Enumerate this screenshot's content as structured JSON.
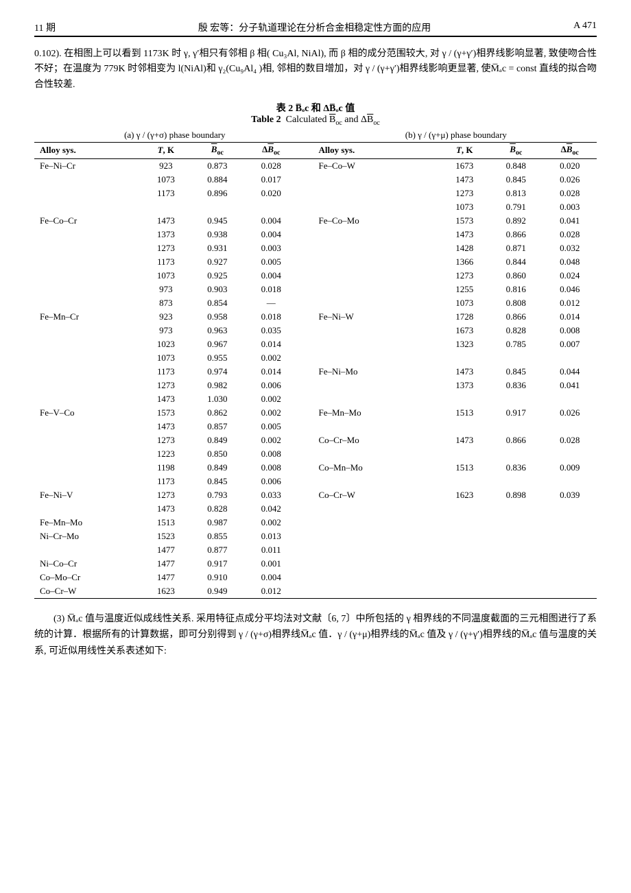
{
  "header": {
    "issue": "11 期",
    "center": "殷 宏等：分子轨道理论在分析合金相稳定性方面的应用",
    "page": "A 471"
  },
  "intro_para": "0.102). 在相图上可以看到 1173K 时 γ, γ′相只有邻相 β 相( Cu₃Al, NiAl), 而 β 相的成分范围较大, 对 γ / (γ+γ′)相界线影响显著, 致使吻合性不好；在温度为 779K 时邻相变为 l(NiAl)和 γ₂(Cu₉Al₄ )相, 邻相的数目增加，对 γ / (γ+γ′)相界线影响更显著, 使M̅ₐc = const 直线的拟合吻合性较差.",
  "table": {
    "title_cn": "表 2  B̅ₒc 和 ΔB̅ₒc 值",
    "title_en": "Table 2  Calculated B̅ₒc and ΔB̅ₒc",
    "phase_a": "(a) γ / (γ+σ) phase boundary",
    "phase_b": "(b) γ / (γ+μ) phase boundary",
    "headers": {
      "alloy": "Alloy sys.",
      "tk": "T, K",
      "boc": "B̅ₒc",
      "dboc": "ΔB̅ₒc"
    },
    "rows": [
      {
        "a": "Fe–Ni–Cr",
        "t": "923",
        "b": "0.873",
        "d": "0.028",
        "a2": "Fe–Co–W",
        "t2": "1673",
        "b2": "0.848",
        "d2": "0.020"
      },
      {
        "a": "",
        "t": "1073",
        "b": "0.884",
        "d": "0.017",
        "a2": "",
        "t2": "1473",
        "b2": "0.845",
        "d2": "0.026"
      },
      {
        "a": "",
        "t": "1173",
        "b": "0.896",
        "d": "0.020",
        "a2": "",
        "t2": "1273",
        "b2": "0.813",
        "d2": "0.028"
      },
      {
        "a": "",
        "t": "",
        "b": "",
        "d": "",
        "a2": "",
        "t2": "1073",
        "b2": "0.791",
        "d2": "0.003"
      },
      {
        "a": "Fe–Co–Cr",
        "t": "1473",
        "b": "0.945",
        "d": "0.004",
        "a2": "Fe–Co–Mo",
        "t2": "1573",
        "b2": "0.892",
        "d2": "0.041"
      },
      {
        "a": "",
        "t": "1373",
        "b": "0.938",
        "d": "0.004",
        "a2": "",
        "t2": "1473",
        "b2": "0.866",
        "d2": "0.028"
      },
      {
        "a": "",
        "t": "1273",
        "b": "0.931",
        "d": "0.003",
        "a2": "",
        "t2": "1428",
        "b2": "0.871",
        "d2": "0.032"
      },
      {
        "a": "",
        "t": "1173",
        "b": "0.927",
        "d": "0.005",
        "a2": "",
        "t2": "1366",
        "b2": "0.844",
        "d2": "0.048"
      },
      {
        "a": "",
        "t": "1073",
        "b": "0.925",
        "d": "0.004",
        "a2": "",
        "t2": "1273",
        "b2": "0.860",
        "d2": "0.024"
      },
      {
        "a": "",
        "t": "973",
        "b": "0.903",
        "d": "0.018",
        "a2": "",
        "t2": "1255",
        "b2": "0.816",
        "d2": "0.046"
      },
      {
        "a": "",
        "t": "873",
        "b": "0.854",
        "d": "—",
        "a2": "",
        "t2": "1073",
        "b2": "0.808",
        "d2": "0.012"
      },
      {
        "a": "Fe–Mn–Cr",
        "t": "923",
        "b": "0.958",
        "d": "0.018",
        "a2": "Fe–Ni–W",
        "t2": "1728",
        "b2": "0.866",
        "d2": "0.014"
      },
      {
        "a": "",
        "t": "973",
        "b": "0.963",
        "d": "0.035",
        "a2": "",
        "t2": "1673",
        "b2": "0.828",
        "d2": "0.008"
      },
      {
        "a": "",
        "t": "1023",
        "b": "0.967",
        "d": "0.014",
        "a2": "",
        "t2": "1323",
        "b2": "0.785",
        "d2": "0.007"
      },
      {
        "a": "",
        "t": "1073",
        "b": "0.955",
        "d": "0.002",
        "a2": "",
        "t2": "",
        "b2": "",
        "d2": ""
      },
      {
        "a": "",
        "t": "1173",
        "b": "0.974",
        "d": "0.014",
        "a2": "Fe–Ni–Mo",
        "t2": "1473",
        "b2": "0.845",
        "d2": "0.044"
      },
      {
        "a": "",
        "t": "1273",
        "b": "0.982",
        "d": "0.006",
        "a2": "",
        "t2": "1373",
        "b2": "0.836",
        "d2": "0.041"
      },
      {
        "a": "",
        "t": "1473",
        "b": "1.030",
        "d": "0.002",
        "a2": "",
        "t2": "",
        "b2": "",
        "d2": ""
      },
      {
        "a": "Fe–V–Co",
        "t": "1573",
        "b": "0.862",
        "d": "0.002",
        "a2": "Fe–Mn–Mo",
        "t2": "1513",
        "b2": "0.917",
        "d2": "0.026"
      },
      {
        "a": "",
        "t": "1473",
        "b": "0.857",
        "d": "0.005",
        "a2": "",
        "t2": "",
        "b2": "",
        "d2": ""
      },
      {
        "a": "",
        "t": "1273",
        "b": "0.849",
        "d": "0.002",
        "a2": "Co–Cr–Mo",
        "t2": "1473",
        "b2": "0.866",
        "d2": "0.028"
      },
      {
        "a": "",
        "t": "1223",
        "b": "0.850",
        "d": "0.008",
        "a2": "",
        "t2": "",
        "b2": "",
        "d2": ""
      },
      {
        "a": "",
        "t": "1198",
        "b": "0.849",
        "d": "0.008",
        "a2": "Co–Mn–Mo",
        "t2": "1513",
        "b2": "0.836",
        "d2": "0.009"
      },
      {
        "a": "",
        "t": "1173",
        "b": "0.845",
        "d": "0.006",
        "a2": "",
        "t2": "",
        "b2": "",
        "d2": ""
      },
      {
        "a": "Fe–Ni–V",
        "t": "1273",
        "b": "0.793",
        "d": "0.033",
        "a2": "Co–Cr–W",
        "t2": "1623",
        "b2": "0.898",
        "d2": "0.039"
      },
      {
        "a": "",
        "t": "1473",
        "b": "0.828",
        "d": "0.042",
        "a2": "",
        "t2": "",
        "b2": "",
        "d2": ""
      },
      {
        "a": "Fe–Mn–Mo",
        "t": "1513",
        "b": "0.987",
        "d": "0.002",
        "a2": "",
        "t2": "",
        "b2": "",
        "d2": ""
      },
      {
        "a": "Ni–Cr–Mo",
        "t": "1523",
        "b": "0.855",
        "d": "0.013",
        "a2": "",
        "t2": "",
        "b2": "",
        "d2": ""
      },
      {
        "a": "",
        "t": "1477",
        "b": "0.877",
        "d": "0.011",
        "a2": "",
        "t2": "",
        "b2": "",
        "d2": ""
      },
      {
        "a": "Ni–Co–Cr",
        "t": "1477",
        "b": "0.917",
        "d": "0.001",
        "a2": "",
        "t2": "",
        "b2": "",
        "d2": ""
      },
      {
        "a": "Co–Mo–Cr",
        "t": "1477",
        "b": "0.910",
        "d": "0.004",
        "a2": "",
        "t2": "",
        "b2": "",
        "d2": ""
      },
      {
        "a": "Co–Cr–W",
        "t": "1623",
        "b": "0.949",
        "d": "0.012",
        "a2": "",
        "t2": "",
        "b2": "",
        "d2": ""
      }
    ]
  },
  "footer_para": "(3)  M̅ₐc 值与温度近似成线性关系. 采用特征点成分平均法对文献〔6, 7〕中所包括的 γ 相界线的不同温度截面的三元相图进行了系统的计算．根据所有的计算数据，即可分别得到 γ / (γ+σ)相界线M̅ₐc 值．γ / (γ+μ)相界线的M̅ₐc 值及 γ / (γ+γ′)相界线的M̅ₐc 值与温度的关系, 可近似用线性关系表述如下:"
}
